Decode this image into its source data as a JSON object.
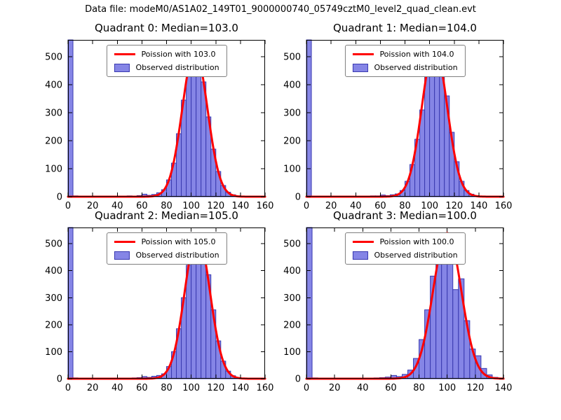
{
  "figure": {
    "title": "Data file: modeM0/AS1A02_149T01_9000000740_05749cztM0_level2_quad_clean.evt",
    "colors": {
      "bar_fill": "#8585e6",
      "bar_edge": "#3a3ab0",
      "curve": "#ff0000",
      "axis": "#000000"
    }
  },
  "chart_data": [
    {
      "type": "bar",
      "title": "Quadrant 0: Median=103.0",
      "legend": [
        "Poission with 103.0",
        "Observed distribution"
      ],
      "bin_width": 4,
      "bin_start": 0,
      "values": [
        560,
        3,
        1,
        2,
        1,
        1,
        2,
        1,
        1,
        2,
        1,
        2,
        3,
        2,
        4,
        9,
        5,
        8,
        14,
        25,
        60,
        120,
        225,
        345,
        455,
        520,
        495,
        410,
        285,
        170,
        90,
        40,
        16,
        7,
        3,
        2,
        1,
        1,
        0,
        0
      ],
      "fit": {
        "mean": 103.0,
        "sigma": 10.1,
        "amplitude": 525
      },
      "xlim": [
        0,
        160
      ],
      "ylim": [
        0,
        560
      ],
      "xticks": [
        0,
        20,
        40,
        60,
        80,
        100,
        120,
        140,
        160
      ],
      "yticks": [
        0,
        100,
        200,
        300,
        400,
        500
      ]
    },
    {
      "type": "bar",
      "title": "Quadrant 1: Median=104.0",
      "legend": [
        "Poission with 104.0",
        "Observed distribution"
      ],
      "bin_width": 4,
      "bin_start": 0,
      "values": [
        560,
        2,
        1,
        1,
        2,
        1,
        1,
        2,
        1,
        1,
        2,
        1,
        2,
        3,
        3,
        6,
        4,
        7,
        10,
        22,
        55,
        115,
        205,
        310,
        440,
        500,
        525,
        470,
        360,
        230,
        125,
        55,
        22,
        9,
        3,
        2,
        1,
        0,
        0,
        0
      ],
      "fit": {
        "mean": 104.0,
        "sigma": 10.2,
        "amplitude": 535
      },
      "xlim": [
        0,
        160
      ],
      "ylim": [
        0,
        560
      ],
      "xticks": [
        0,
        20,
        40,
        60,
        80,
        100,
        120,
        140,
        160
      ],
      "yticks": [
        0,
        100,
        200,
        300,
        400,
        500
      ]
    },
    {
      "type": "bar",
      "title": "Quadrant 2: Median=105.0",
      "legend": [
        "Poission with 105.0",
        "Observed distribution"
      ],
      "bin_width": 4,
      "bin_start": 0,
      "values": [
        560,
        3,
        1,
        2,
        1,
        2,
        1,
        1,
        2,
        1,
        1,
        2,
        2,
        3,
        4,
        8,
        5,
        9,
        12,
        18,
        45,
        100,
        185,
        300,
        420,
        505,
        530,
        490,
        385,
        255,
        140,
        65,
        28,
        11,
        4,
        2,
        1,
        1,
        0,
        0
      ],
      "fit": {
        "mean": 105.0,
        "sigma": 10.2,
        "amplitude": 535
      },
      "xlim": [
        0,
        160
      ],
      "ylim": [
        0,
        560
      ],
      "xticks": [
        0,
        20,
        40,
        60,
        80,
        100,
        120,
        140,
        160
      ],
      "yticks": [
        0,
        100,
        200,
        300,
        400,
        500
      ]
    },
    {
      "type": "bar",
      "title": "Quadrant 3: Median=100.0",
      "legend": [
        "Poission with 100.0",
        "Observed distribution"
      ],
      "bin_width": 4,
      "bin_start": 0,
      "values": [
        560,
        3,
        1,
        2,
        1,
        1,
        2,
        1,
        1,
        2,
        1,
        2,
        3,
        4,
        6,
        12,
        8,
        16,
        32,
        75,
        145,
        255,
        380,
        480,
        530,
        490,
        330,
        370,
        215,
        110,
        85,
        38,
        14,
        5,
        2
      ],
      "fit": {
        "mean": 100.0,
        "sigma": 10.0,
        "amplitude": 540
      },
      "xlim": [
        0,
        140
      ],
      "ylim": [
        0,
        560
      ],
      "xticks": [
        0,
        20,
        40,
        60,
        80,
        100,
        120,
        140
      ],
      "yticks": [
        0,
        100,
        200,
        300,
        400,
        500
      ]
    }
  ]
}
